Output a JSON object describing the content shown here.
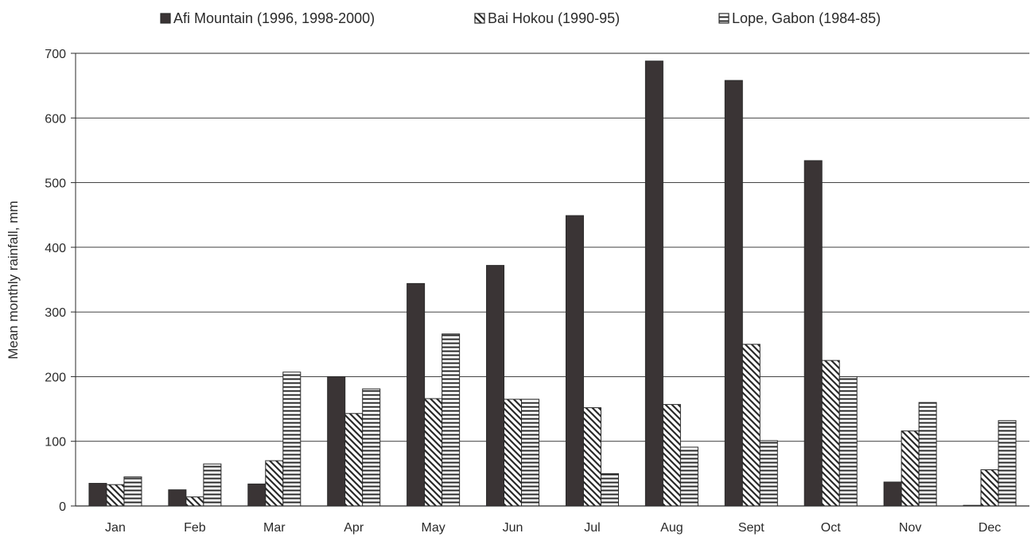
{
  "chart_data": {
    "type": "bar",
    "categories": [
      "Jan",
      "Feb",
      "Mar",
      "Apr",
      "May",
      "Jun",
      "Jul",
      "Aug",
      "Sept",
      "Oct",
      "Nov",
      "Dec"
    ],
    "series": [
      {
        "name": "Afi Mountain (1996, 1998-2000)",
        "pattern": "solid",
        "color": "#3a3435",
        "values": [
          35,
          25,
          34,
          200,
          344,
          372,
          449,
          688,
          658,
          534,
          37,
          1
        ]
      },
      {
        "name": "Bai Hokou (1990-95)",
        "pattern": "diagonal",
        "color": "#2a2a2a",
        "values": [
          33,
          14,
          70,
          143,
          166,
          165,
          152,
          157,
          250,
          225,
          116,
          56
        ]
      },
      {
        "name": "Lope, Gabon (1984-85)",
        "pattern": "horizontal",
        "color": "#2a2a2a",
        "values": [
          45,
          65,
          207,
          181,
          266,
          165,
          50,
          91,
          101,
          200,
          160,
          132
        ]
      }
    ],
    "ylabel": "Mean monthly rainfall, mm",
    "xlabel": "",
    "ylim": [
      0,
      700
    ],
    "yticks": [
      0,
      100,
      200,
      300,
      400,
      500,
      600,
      700
    ],
    "grid": true,
    "legend_position": "top"
  }
}
